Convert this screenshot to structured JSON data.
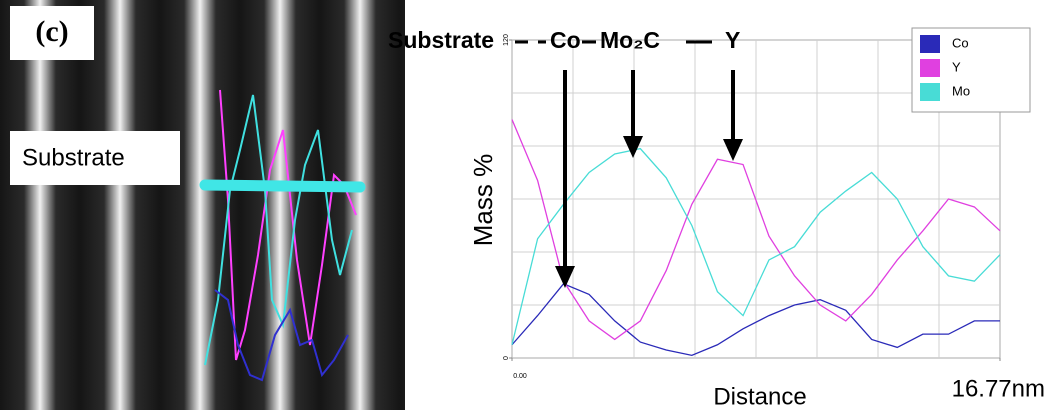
{
  "panel_label": "(c)",
  "image_label": "Substrate",
  "chart_data": {
    "type": "line",
    "annotations": [
      "Substrate",
      "Co",
      "Mo₂C",
      "Y"
    ],
    "ylabel": "Mass %",
    "xlabel": "Distance",
    "x": [
      0,
      0.88,
      1.77,
      2.65,
      3.53,
      4.41,
      5.3,
      6.18,
      7.06,
      7.94,
      8.83,
      9.71,
      10.59,
      11.47,
      12.36,
      13.24,
      14.12,
      15.0,
      15.89,
      16.77
    ],
    "series": [
      {
        "name": "Co",
        "color": "#2a2ab8",
        "values": [
          5,
          16,
          28,
          24,
          14,
          6,
          3,
          1,
          5,
          11,
          16,
          20,
          22,
          18,
          7,
          4,
          9,
          9,
          14,
          14
        ]
      },
      {
        "name": "Y",
        "color": "#e040e0",
        "values": [
          90,
          67,
          29,
          14,
          7,
          14,
          33,
          58,
          75,
          73,
          46,
          31,
          20,
          14,
          24,
          37,
          48,
          60,
          57,
          48
        ]
      },
      {
        "name": "Mo",
        "color": "#48dcd6",
        "values": [
          5,
          45,
          58,
          70,
          77,
          79,
          68,
          50,
          25,
          16,
          37,
          42,
          55,
          63,
          70,
          60,
          42,
          31,
          29,
          39
        ]
      }
    ],
    "xlim": [
      0,
      16.77
    ],
    "ylim": [
      0,
      120
    ],
    "xticks": [
      {
        "value": 0,
        "label": "0.00"
      },
      {
        "value": 16.77,
        "label": "16.77nm"
      }
    ],
    "yticks": [
      0,
      120
    ],
    "legend": "upper right"
  }
}
